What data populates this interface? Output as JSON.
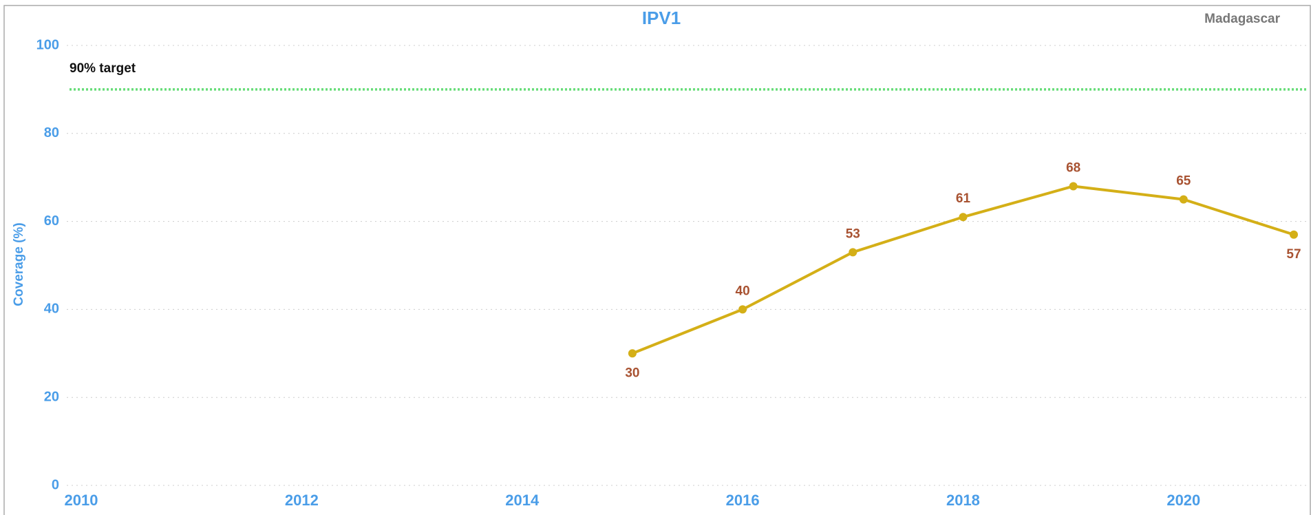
{
  "chart_data": {
    "type": "line",
    "title": "IPV1",
    "subtitle": "Madagascar",
    "y_label": "Coverage (%)",
    "x": [
      2015,
      2016,
      2017,
      2018,
      2019,
      2020,
      2021
    ],
    "series": [
      {
        "name": "IPV1",
        "color": "#d4af17",
        "values": [
          30,
          40,
          53,
          61,
          68,
          65,
          57
        ]
      }
    ],
    "xlim": [
      2010,
      2021
    ],
    "xticks": [
      2010,
      2012,
      2014,
      2016,
      2018,
      2020
    ],
    "ylim": [
      0,
      100
    ],
    "yticks": [
      0,
      20,
      40,
      60,
      80,
      100
    ],
    "grid": true,
    "target": {
      "value": 90,
      "label": "90% target",
      "color": "#66dd77"
    }
  }
}
